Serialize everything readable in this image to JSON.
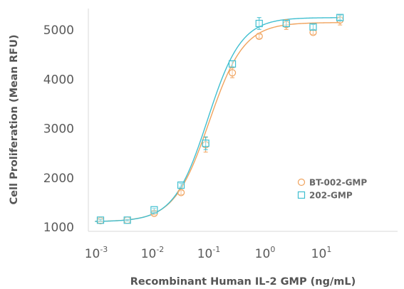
{
  "chart_data": {
    "type": "scatter",
    "xscale": "log",
    "xlim": [
      0.0005,
      200
    ],
    "ylim": [
      1000,
      5500
    ],
    "xlabel": "Recombinant Human IL-2 GMP (ng/mL)",
    "ylabel": "Cell Proliferation (Mean RFU)",
    "x_ticks": [
      {
        "value": 0.001,
        "base": "10",
        "exp": "-3"
      },
      {
        "value": 0.01,
        "base": "10",
        "exp": "-2"
      },
      {
        "value": 0.1,
        "base": "10",
        "exp": "-1"
      },
      {
        "value": 1,
        "base": "10",
        "exp": "0"
      },
      {
        "value": 10,
        "base": "10",
        "exp": "1"
      }
    ],
    "y_ticks": [
      {
        "value": 1000,
        "label": "1000"
      },
      {
        "value": 2000,
        "label": "2000"
      },
      {
        "value": 3000,
        "label": "3000"
      },
      {
        "value": 4000,
        "label": "4000"
      },
      {
        "value": 5000,
        "label": "5000"
      }
    ],
    "legend_position": "right-middle",
    "series": [
      {
        "name": "BT-002-GMP",
        "color": "#F0A35E",
        "marker": "circle",
        "points": [
          {
            "x": 0.001,
            "y": 1130,
            "err": 20
          },
          {
            "x": 0.003,
            "y": 1140,
            "err": 15
          },
          {
            "x": 0.009,
            "y": 1280,
            "err": 30
          },
          {
            "x": 0.027,
            "y": 1700,
            "err": 40
          },
          {
            "x": 0.074,
            "y": 2670,
            "err": 150
          },
          {
            "x": 0.22,
            "y": 4130,
            "err": 100
          },
          {
            "x": 0.66,
            "y": 4870,
            "err": 40
          },
          {
            "x": 2.0,
            "y": 5110,
            "err": 100
          },
          {
            "x": 6.0,
            "y": 4950,
            "err": 40
          },
          {
            "x": 18.0,
            "y": 5200,
            "err": 100
          }
        ]
      },
      {
        "name": "202-GMP",
        "color": "#40BFD0",
        "marker": "square",
        "points": [
          {
            "x": 0.001,
            "y": 1140,
            "err": 20
          },
          {
            "x": 0.003,
            "y": 1140,
            "err": 15
          },
          {
            "x": 0.009,
            "y": 1350,
            "err": 30
          },
          {
            "x": 0.027,
            "y": 1850,
            "err": 40
          },
          {
            "x": 0.074,
            "y": 2700,
            "err": 130
          },
          {
            "x": 0.22,
            "y": 4310,
            "err": 60
          },
          {
            "x": 0.66,
            "y": 5130,
            "err": 120
          },
          {
            "x": 2.0,
            "y": 5130,
            "err": 60
          },
          {
            "x": 6.0,
            "y": 5060,
            "err": 50
          },
          {
            "x": 18.0,
            "y": 5250,
            "err": 50
          }
        ]
      }
    ],
    "fits": [
      {
        "series": "BT-002-GMP",
        "bottom": 1110,
        "top": 5150,
        "ec50": 0.085,
        "hill": 1.4
      },
      {
        "series": "202-GMP",
        "bottom": 1110,
        "top": 5250,
        "ec50": 0.08,
        "hill": 1.45
      }
    ]
  }
}
